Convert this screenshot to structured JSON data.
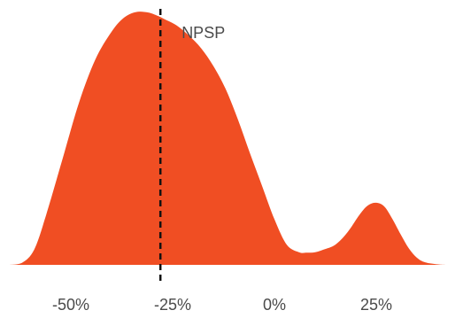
{
  "chart_data": {
    "type": "area",
    "title": "",
    "xlabel": "",
    "ylabel": "",
    "xlim": [
      -65,
      45
    ],
    "ylim": [
      0,
      1
    ],
    "grid": false,
    "x_ticks": [
      -50,
      -25,
      0,
      25
    ],
    "x_tick_labels": [
      "-50%",
      "-25%",
      "0%",
      "25%"
    ],
    "series": [
      {
        "x": [
          -65,
          -62,
          -59,
          -56,
          -52,
          -48,
          -44,
          -40,
          -37,
          -34,
          -31,
          -29,
          -27,
          -24,
          -21,
          -18,
          -15,
          -12,
          -9,
          -6,
          -3,
          0,
          3,
          6,
          8,
          10,
          12,
          15,
          18,
          21,
          23,
          25,
          27,
          29,
          31,
          33,
          35,
          37,
          40,
          42,
          45
        ],
        "y": [
          0.0,
          0.008,
          0.06,
          0.2,
          0.42,
          0.64,
          0.81,
          0.92,
          0.975,
          0.998,
          0.996,
          0.985,
          0.97,
          0.945,
          0.905,
          0.855,
          0.785,
          0.695,
          0.575,
          0.44,
          0.31,
          0.18,
          0.08,
          0.05,
          0.048,
          0.05,
          0.06,
          0.08,
          0.13,
          0.2,
          0.235,
          0.245,
          0.23,
          0.18,
          0.12,
          0.065,
          0.028,
          0.01,
          0.002,
          0.0,
          0.0
        ],
        "color": "#f04e23"
      }
    ],
    "annotations": [
      {
        "type": "vline",
        "x": -28,
        "label": "NPSP",
        "color": "#111111"
      }
    ]
  }
}
